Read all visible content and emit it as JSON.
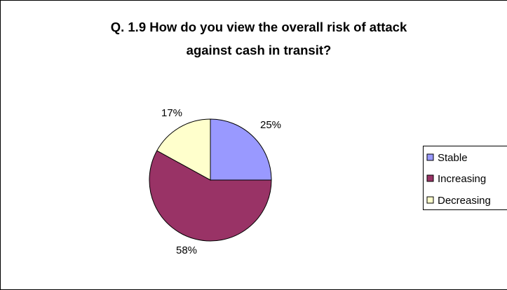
{
  "chart_data": {
    "type": "pie",
    "title": "Q. 1.9   How do you view the overall risk of attack against cash in transit?",
    "title_lines": [
      "Q. 1.9   How do you view the overall risk of attack",
      "against cash in transit?"
    ],
    "categories": [
      "Stable",
      "Increasing",
      "Decreasing"
    ],
    "values": [
      25,
      58,
      17
    ],
    "labels": [
      "25%",
      "58%",
      "17%"
    ],
    "colors": [
      "#9999ff",
      "#993366",
      "#ffffcc"
    ],
    "start_angle": "12 o'clock",
    "direction": "clockwise",
    "legend_position": "right"
  }
}
